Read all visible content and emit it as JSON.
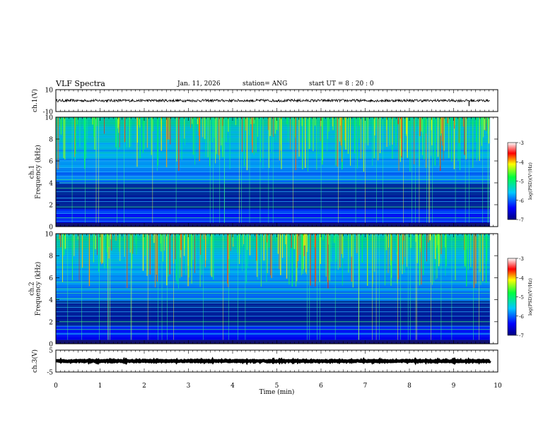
{
  "header": {
    "title": "VLF Spectra",
    "date": "Jan. 11, 2026",
    "station": "station= ANG",
    "start": "start  UT =  8 : 20 : 0"
  },
  "chart_data": [
    {
      "type": "line",
      "name": "ch1-waveform",
      "ylabel": "ch.1(V)",
      "ylim": [
        -10,
        10
      ],
      "yticks": [
        "10",
        "-10"
      ],
      "xlim": [
        0,
        10
      ],
      "baseline": 0,
      "noise_amplitude": 1.2,
      "spikes": [
        {
          "t": 9.35,
          "v": -5
        }
      ]
    },
    {
      "type": "heatmap",
      "name": "ch1-spectrogram",
      "ylabel": "ch.1\nFrequency (kHz)",
      "ylim": [
        0,
        10
      ],
      "yticks": [
        "0",
        "2",
        "4",
        "6",
        "8",
        "10"
      ],
      "xlim": [
        0,
        9.82
      ],
      "colorbar": {
        "label": "log(PSD)(V²/Hz)",
        "range": [
          -7,
          -3
        ],
        "ticks": [
          "-3",
          "-4",
          "-5",
          "-6",
          "-7"
        ]
      },
      "tone_lines_khz": [
        0.5,
        0.8,
        1.2,
        1.8,
        2.3,
        2.6,
        3.2,
        3.5,
        4.0,
        4.3,
        4.6,
        5.0,
        5.4,
        6.0
      ]
    },
    {
      "type": "heatmap",
      "name": "ch2-spectrogram",
      "ylabel": "ch.2\nFrequency (kHz)",
      "ylim": [
        0,
        10
      ],
      "yticks": [
        "0",
        "2",
        "4",
        "6",
        "8",
        "10"
      ],
      "xlim": [
        0,
        9.82
      ],
      "colorbar": {
        "label": "log(PSD)(V²/Hz)",
        "range": [
          -7,
          -3
        ],
        "ticks": [
          "-3",
          "-4",
          "-5",
          "-6",
          "-7"
        ]
      },
      "tone_lines_khz": [
        0.9,
        1.3,
        1.6,
        2.0,
        2.5,
        2.9,
        3.3,
        3.7,
        4.1,
        4.6,
        5.0,
        5.6
      ]
    },
    {
      "type": "line",
      "name": "ch3-waveform",
      "ylabel": "ch.3(V)",
      "ylim": [
        -5,
        5
      ],
      "yticks": [
        "5",
        "-5"
      ],
      "xlim": [
        0,
        10
      ],
      "baseline": 0,
      "noise_amplitude": 0.25
    }
  ],
  "xaxis": {
    "label": "Time (min)",
    "ticks": [
      "0",
      "1",
      "2",
      "3",
      "4",
      "5",
      "6",
      "7",
      "8",
      "9",
      "10"
    ],
    "range": [
      0,
      10
    ]
  }
}
